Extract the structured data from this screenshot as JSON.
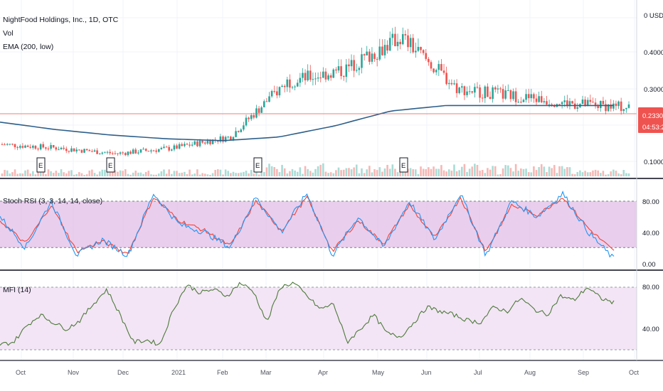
{
  "header": {
    "title": "NightFood Holdings, Inc., 1D, OTC",
    "vol_label": "Vol",
    "ema_label": "EMA (200, low)"
  },
  "price_axis": {
    "ticks": [
      "0 USD",
      "0.4000",
      "0.3000",
      "0.1000"
    ],
    "price_tag": "0.2330",
    "countdown_tag": "04:53:20"
  },
  "stoch": {
    "label": "Stoch RSI (3, 3, 14, 14, close)",
    "ticks": [
      "80.00",
      "40.00",
      "0.00"
    ]
  },
  "mfi": {
    "label": "MFI (14)",
    "ticks": [
      "80.00",
      "40.00"
    ]
  },
  "earnings_marker": "E",
  "time_axis": [
    "Oct",
    "Nov",
    "Dec",
    "2021",
    "Feb",
    "Mar",
    "Apr",
    "May",
    "Jun",
    "Jul",
    "Aug",
    "Sep",
    "Oct"
  ],
  "colors": {
    "up": "#26a69a",
    "down": "#ef5350",
    "ema": "#2e5f8a",
    "k_line": "#2196f3",
    "d_line": "#f44336",
    "mfi_line": "#4c7a3a",
    "stoch_band": "#e1bee7",
    "mfi_band": "#f3e5f5",
    "price_tag": "#ef5350"
  },
  "chart_data": [
    {
      "type": "candlestick",
      "title": "NightFood Holdings, Inc., 1D, OTC",
      "x": [
        "Oct 2020",
        "Nov",
        "Dec",
        "2021",
        "Feb",
        "Mar",
        "Apr",
        "May",
        "Jun",
        "Jul",
        "Aug",
        "Sep"
      ],
      "close": [
        0.14,
        0.13,
        0.115,
        0.13,
        0.16,
        0.31,
        0.34,
        0.43,
        0.29,
        0.27,
        0.25,
        0.24
      ],
      "ema_200_low": [
        0.2,
        0.18,
        0.165,
        0.155,
        0.15,
        0.16,
        0.19,
        0.23,
        0.245,
        0.245,
        0.245,
        0.245
      ],
      "last_price": 0.233,
      "earnings_markers": [
        "Oct",
        "Dec",
        "Mar",
        "Jun"
      ]
    },
    {
      "type": "line",
      "title": "Stoch RSI (3, 3, 14, 14, close)",
      "ylim": [
        0,
        100
      ],
      "bands": [
        20,
        80
      ],
      "series": [
        {
          "name": "K",
          "values": [
            60,
            20,
            80,
            10,
            30,
            10,
            90,
            50,
            40,
            20,
            85,
            40,
            90,
            10,
            60,
            20,
            80,
            30,
            90,
            10,
            80,
            60,
            90,
            40,
            5
          ]
        },
        {
          "name": "D",
          "values": [
            55,
            25,
            75,
            15,
            28,
            12,
            85,
            55,
            42,
            22,
            80,
            42,
            85,
            15,
            55,
            25,
            75,
            32,
            85,
            15,
            75,
            62,
            85,
            45,
            15
          ]
        }
      ]
    },
    {
      "type": "line",
      "title": "MFI (14)",
      "ylim": [
        25,
        85
      ],
      "bands": [
        20,
        80
      ],
      "values": [
        28,
        30,
        45,
        55,
        48,
        42,
        50,
        65,
        78,
        55,
        30,
        32,
        28,
        60,
        82,
        75,
        78,
        72,
        84,
        76,
        48,
        80,
        84,
        72,
        60,
        65,
        30,
        42,
        55,
        38,
        35,
        48,
        62,
        58,
        55,
        50,
        48,
        62,
        58,
        70,
        60,
        55,
        72,
        68,
        80,
        70,
        66
      ]
    }
  ]
}
